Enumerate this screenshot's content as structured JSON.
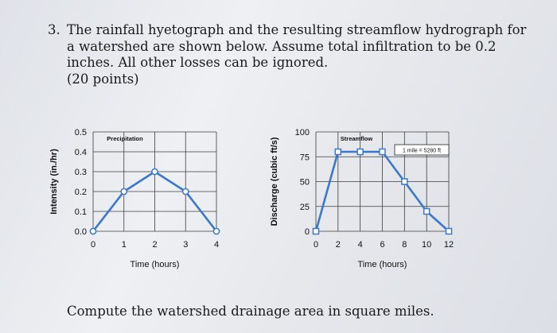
{
  "question": {
    "number": "3.",
    "text": "The rainfall hyetograph and the resulting streamflow hydrograph for a watershed are shown below. Assume total infiltration to be 0.2 inches. All other losses can be ignored.",
    "points": "(20 points)",
    "footer": "Compute the watershed drainage area in square miles."
  },
  "colors": {
    "line": "#3a78c9",
    "marker_fill": "#ffffff",
    "grid": "#3c3c3c"
  },
  "chart_data": [
    {
      "type": "line",
      "title": "Precipitation",
      "xlabel": "Time (hours)",
      "ylabel": "Intensity (in./hr)",
      "xlim": [
        0,
        4
      ],
      "ylim": [
        0,
        0.5
      ],
      "xticks": [
        "0",
        "1",
        "2",
        "3",
        "4"
      ],
      "yticks": [
        "0.0",
        "0.1",
        "0.2",
        "0.3",
        "0.4",
        "0.5"
      ],
      "grid": true,
      "series": [
        {
          "x": [
            0,
            1,
            2,
            3,
            4
          ],
          "y": [
            0,
            0.2,
            0.3,
            0.2,
            0
          ]
        }
      ]
    },
    {
      "type": "line",
      "title": "Streamflow",
      "xlabel": "Time (hours)",
      "ylabel": "Discharge (cubic ft/s)",
      "xlim": [
        0,
        12
      ],
      "ylim": [
        0,
        100
      ],
      "xticks": [
        "0",
        "2",
        "4",
        "6",
        "8",
        "10",
        "12"
      ],
      "yticks": [
        "0",
        "25",
        "50",
        "75",
        "100"
      ],
      "annotation": "1 mile = 5280 ft",
      "grid": true,
      "series": [
        {
          "x": [
            0,
            2,
            4,
            6,
            8,
            10,
            12
          ],
          "y": [
            0,
            80,
            80,
            80,
            50,
            20,
            0
          ]
        }
      ]
    }
  ]
}
